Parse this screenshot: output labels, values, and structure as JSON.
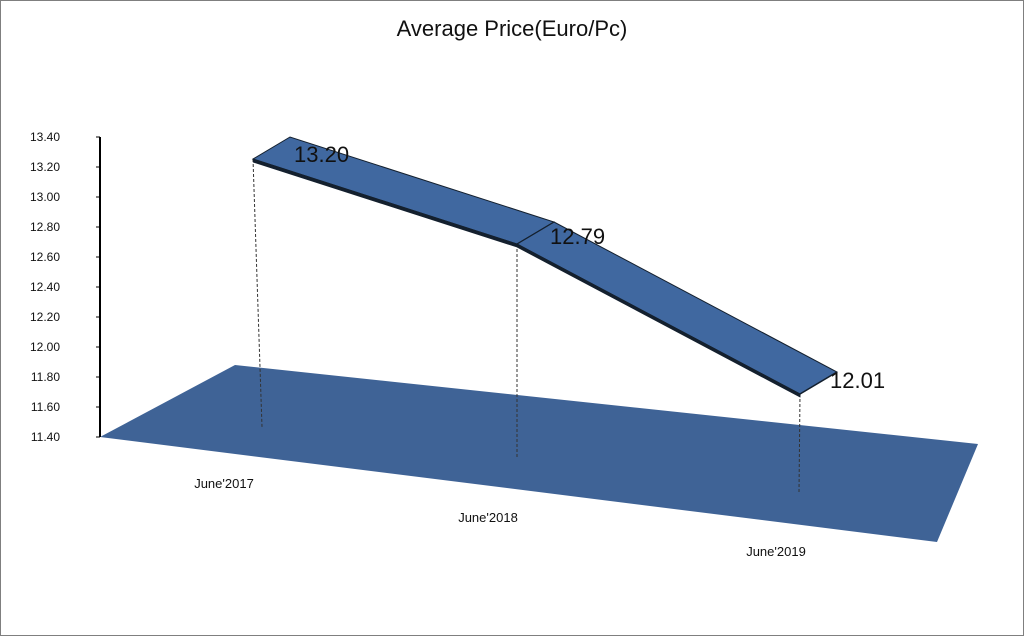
{
  "chart_data": {
    "type": "line",
    "style": "3d-ribbon",
    "title": "Average Price(Euro/Pc)",
    "xlabel": "",
    "ylabel": "",
    "categories": [
      "June'2017",
      "June'2018",
      "June'2019"
    ],
    "series": [
      {
        "values": [
          13.2,
          12.79,
          12.01
        ]
      }
    ],
    "data_labels": [
      "13.20",
      "12.79",
      "12.01"
    ],
    "y_ticks": [
      "11.40",
      "11.60",
      "11.80",
      "12.00",
      "12.20",
      "12.40",
      "12.60",
      "12.80",
      "13.00",
      "13.20",
      "13.40"
    ],
    "ylim": [
      11.4,
      13.4
    ],
    "grid": false,
    "legend": "none",
    "colors": {
      "ribbon": "#4068a0",
      "ribbon_edge": "#14202e",
      "floor": "#3f6396",
      "axis": "#000000",
      "drop_line": "#333333"
    }
  }
}
